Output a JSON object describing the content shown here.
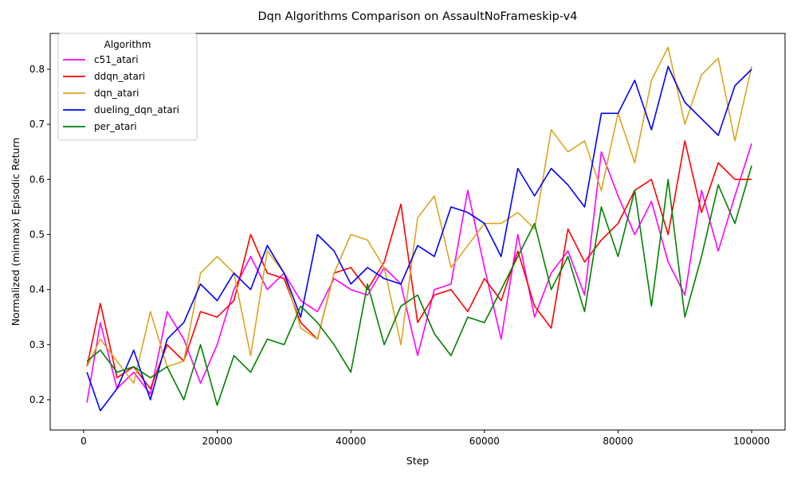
{
  "chart_data": {
    "type": "line",
    "title": "Dqn Algorithms Comparison on AssaultNoFrameskip-v4",
    "xlabel": "Step",
    "ylabel": "Normalized (minmax) Episodic Return",
    "xlim": [
      -5000,
      105000
    ],
    "ylim": [
      0.145,
      0.865
    ],
    "xticks": [
      0,
      20000,
      40000,
      60000,
      80000,
      100000
    ],
    "xtick_labels": [
      "0",
      "20000",
      "40000",
      "60000",
      "80000",
      "100000"
    ],
    "yticks": [
      0.2,
      0.3,
      0.4,
      0.5,
      0.6,
      0.7,
      0.8
    ],
    "ytick_labels": [
      "0.2",
      "0.3",
      "0.4",
      "0.5",
      "0.6",
      "0.7",
      "0.8"
    ],
    "grid": false,
    "legend": {
      "title": "Algorithm",
      "placement": "top-left"
    },
    "x": [
      500,
      2500,
      5000,
      7500,
      10000,
      12500,
      15000,
      17500,
      20000,
      22500,
      25000,
      27500,
      30000,
      32500,
      35000,
      37500,
      40000,
      42500,
      45000,
      47500,
      50000,
      52500,
      55000,
      57500,
      60000,
      62500,
      65000,
      67500,
      70000,
      72500,
      75000,
      77500,
      80000,
      82500,
      85000,
      87500,
      90000,
      92500,
      95000,
      97500,
      100000
    ],
    "series": [
      {
        "name": "c51_atari",
        "color": "#ff00ff",
        "values": [
          0.195,
          0.34,
          0.22,
          0.25,
          0.21,
          0.36,
          0.31,
          0.23,
          0.3,
          0.4,
          0.46,
          0.4,
          0.43,
          0.38,
          0.36,
          0.42,
          0.4,
          0.39,
          0.44,
          0.41,
          0.28,
          0.4,
          0.41,
          0.58,
          0.44,
          0.31,
          0.5,
          0.35,
          0.43,
          0.47,
          0.39,
          0.65,
          0.57,
          0.5,
          0.56,
          0.45,
          0.39,
          0.58,
          0.47,
          0.57,
          0.665
        ]
      },
      {
        "name": "ddqn_atari",
        "color": "#ff0000",
        "values": [
          0.26,
          0.375,
          0.24,
          0.26,
          0.22,
          0.3,
          0.27,
          0.36,
          0.35,
          0.38,
          0.5,
          0.43,
          0.42,
          0.34,
          0.31,
          0.43,
          0.44,
          0.4,
          0.45,
          0.555,
          0.34,
          0.39,
          0.4,
          0.36,
          0.42,
          0.38,
          0.47,
          0.37,
          0.33,
          0.51,
          0.45,
          0.49,
          0.52,
          0.58,
          0.6,
          0.5,
          0.67,
          0.54,
          0.63,
          0.6,
          0.6
        ]
      },
      {
        "name": "dqn_atari",
        "color": "#daa520",
        "values": [
          0.26,
          0.31,
          0.27,
          0.23,
          0.36,
          0.26,
          0.27,
          0.43,
          0.46,
          0.43,
          0.28,
          0.47,
          0.43,
          0.33,
          0.31,
          0.43,
          0.5,
          0.49,
          0.44,
          0.3,
          0.53,
          0.57,
          0.44,
          0.48,
          0.52,
          0.52,
          0.54,
          0.51,
          0.69,
          0.65,
          0.67,
          0.58,
          0.72,
          0.63,
          0.78,
          0.84,
          0.7,
          0.79,
          0.82,
          0.67,
          0.805
        ]
      },
      {
        "name": "dueling_dqn_atari",
        "color": "#0000ff",
        "values": [
          0.25,
          0.18,
          0.22,
          0.29,
          0.2,
          0.31,
          0.34,
          0.41,
          0.38,
          0.43,
          0.4,
          0.48,
          0.43,
          0.35,
          0.5,
          0.47,
          0.41,
          0.44,
          0.42,
          0.41,
          0.48,
          0.46,
          0.55,
          0.54,
          0.52,
          0.46,
          0.62,
          0.57,
          0.62,
          0.59,
          0.55,
          0.72,
          0.72,
          0.78,
          0.69,
          0.805,
          0.74,
          0.71,
          0.68,
          0.77,
          0.8
        ]
      },
      {
        "name": "per_atari",
        "color": "#008000",
        "values": [
          0.27,
          0.29,
          0.25,
          0.26,
          0.24,
          0.26,
          0.2,
          0.3,
          0.19,
          0.28,
          0.25,
          0.31,
          0.3,
          0.37,
          0.34,
          0.3,
          0.25,
          0.41,
          0.3,
          0.37,
          0.39,
          0.32,
          0.28,
          0.35,
          0.34,
          0.4,
          0.46,
          0.52,
          0.4,
          0.46,
          0.36,
          0.55,
          0.46,
          0.58,
          0.37,
          0.6,
          0.35,
          0.46,
          0.59,
          0.52,
          0.625
        ]
      }
    ]
  }
}
